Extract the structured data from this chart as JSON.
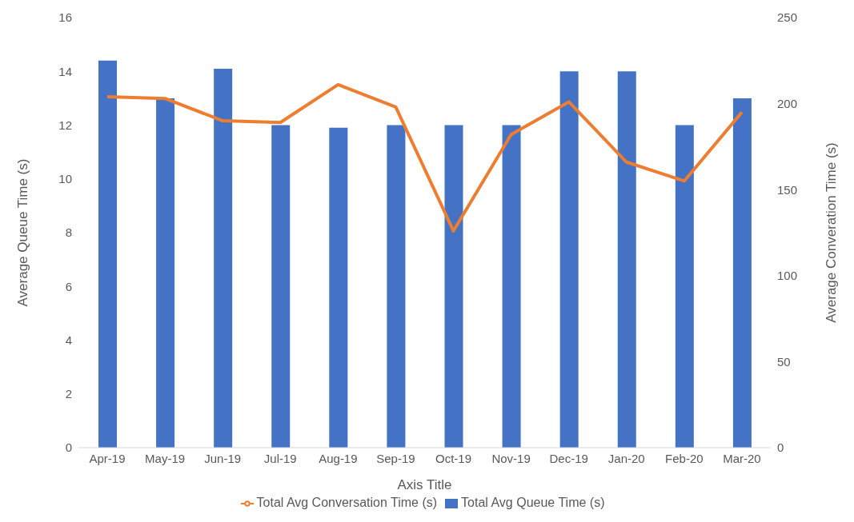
{
  "chart_data": {
    "type": "bar",
    "xlabel": "Axis Title",
    "ylabel": "Average Queue Time (s)",
    "y2label": "Average Converation Time (s)",
    "categories": [
      "Apr-19",
      "May-19",
      "Jun-19",
      "Jul-19",
      "Aug-19",
      "Sep-19",
      "Oct-19",
      "Nov-19",
      "Dec-19",
      "Jan-20",
      "Feb-20",
      "Mar-20"
    ],
    "series": [
      {
        "name": "Total Avg Queue Time (s)",
        "color": "#4472c4",
        "values": [
          14.4,
          13,
          14.1,
          12,
          11.9,
          12,
          12,
          12,
          14,
          14,
          12,
          13
        ]
      },
      {
        "name": "Total Avg Conversation Time (s)",
        "type": "line",
        "axis": "y2",
        "color": "#ed7d31",
        "values": [
          204,
          203,
          190,
          189,
          211,
          198,
          126,
          182,
          201,
          166,
          155,
          195
        ]
      }
    ],
    "ylim": [
      0,
      16
    ],
    "yticks": [
      0,
      2,
      4,
      6,
      8,
      10,
      12,
      14,
      16
    ],
    "y2lim": [
      0,
      250
    ],
    "y2ticks": [
      0,
      50,
      100,
      150,
      200,
      250
    ],
    "grid": false,
    "legend": "bottom",
    "marker": "none",
    "line_style": "solid"
  }
}
